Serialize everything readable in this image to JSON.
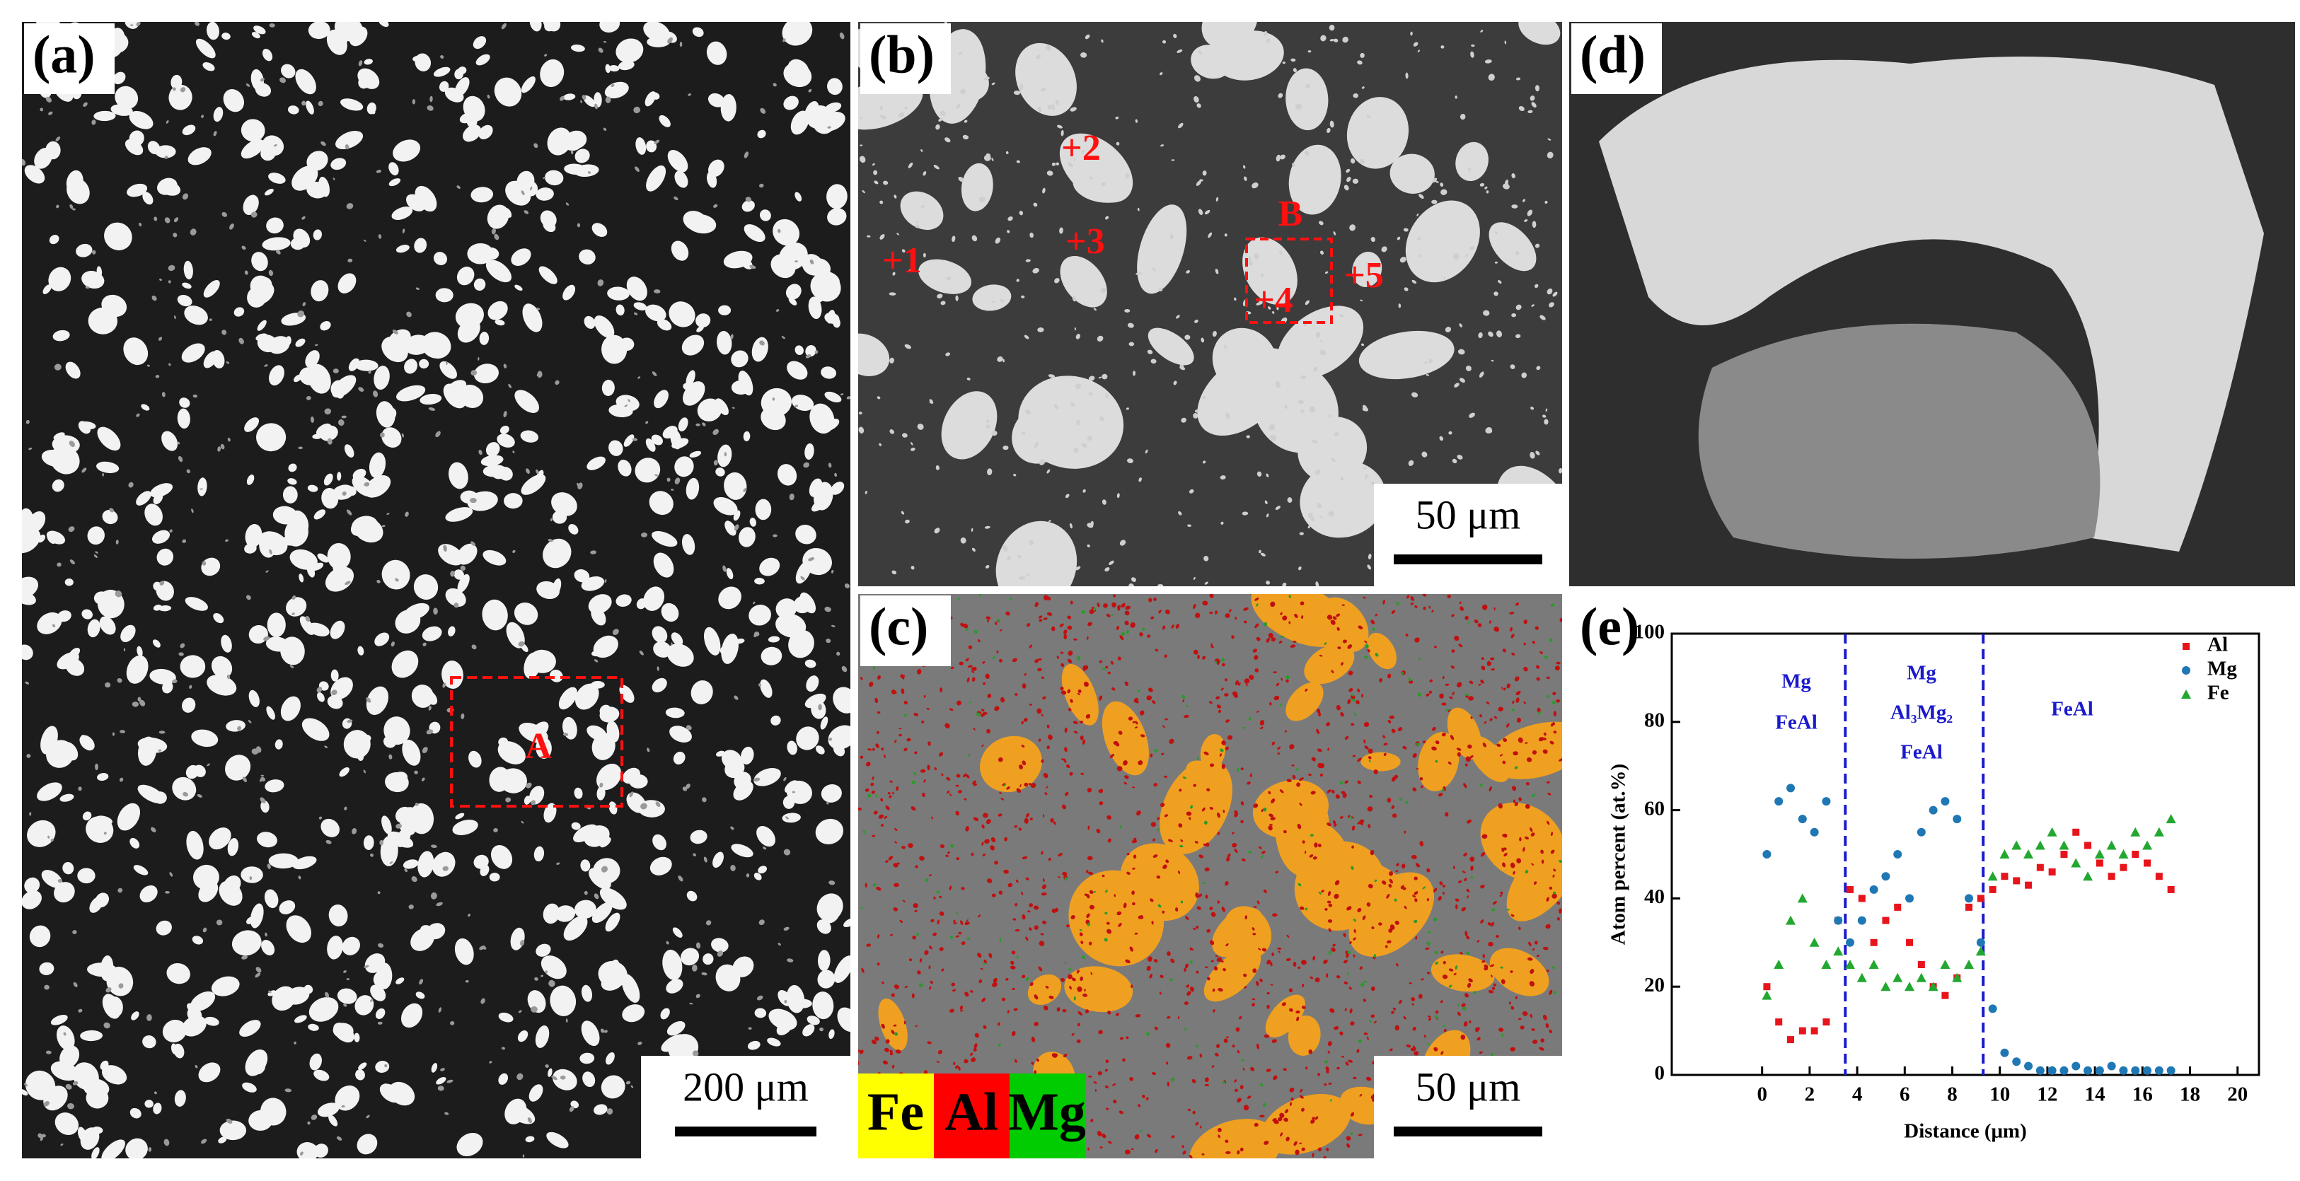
{
  "panels": [
    {
      "label": "(a)",
      "markers": [
        "A"
      ],
      "scale_bar": "200 μm"
    },
    {
      "label": "(b)",
      "markers": [
        "B",
        "+1",
        "+2",
        "+3",
        "+4",
        "+5"
      ],
      "scale_bar": "50 μm"
    },
    {
      "label": "(c)",
      "scale_bar": "50 μm",
      "legend": [
        "Fe",
        "Al",
        "Mg"
      ],
      "legend_colors": [
        "#ffff00",
        "#ff0000",
        "#00cc00"
      ]
    },
    {
      "label": "(d)"
    }
  ],
  "chart_data": {
    "type": "scatter",
    "panel_label": "(e)",
    "xlabel": "Distance (μm)",
    "ylabel": "Atom percent (at.%)",
    "xlim": [
      -3.8,
      20.9
    ],
    "ylim": [
      0,
      100
    ],
    "xticks": [
      0,
      2,
      4,
      6,
      8,
      10,
      12,
      14,
      16,
      18,
      20
    ],
    "yticks": [
      0,
      20,
      40,
      60,
      80,
      100
    ],
    "dividers": [
      3.5,
      9.3
    ],
    "region_labels": [
      [
        "Mg",
        "FeAl"
      ],
      [
        "Mg",
        "Al₃Mg₂",
        "FeAl"
      ],
      [
        "FeAl"
      ]
    ],
    "legend_position": "upper right",
    "x": [
      0.2,
      0.7,
      1.2,
      1.7,
      2.2,
      2.7,
      3.2,
      3.7,
      4.2,
      4.7,
      5.2,
      5.7,
      6.2,
      6.7,
      7.2,
      7.7,
      8.2,
      8.7,
      9.2,
      9.7,
      10.2,
      10.7,
      11.2,
      11.7,
      12.2,
      12.7,
      13.2,
      13.7,
      14.2,
      14.7,
      15.2,
      15.7,
      16.2,
      16.7,
      17.2
    ],
    "series": [
      {
        "name": "Al",
        "color": "#e8141c",
        "marker": "square",
        "values": [
          20,
          12,
          8,
          10,
          10,
          12,
          35,
          42,
          40,
          30,
          35,
          38,
          30,
          25,
          20,
          18,
          22,
          38,
          40,
          42,
          45,
          44,
          43,
          47,
          46,
          50,
          55,
          52,
          48,
          45,
          47,
          50,
          48,
          45,
          42
        ]
      },
      {
        "name": "Mg",
        "color": "#1f77b4",
        "marker": "circle",
        "values": [
          50,
          62,
          65,
          58,
          55,
          62,
          35,
          30,
          35,
          42,
          45,
          50,
          40,
          55,
          60,
          62,
          58,
          40,
          30,
          15,
          5,
          3,
          2,
          1,
          1,
          1,
          2,
          1,
          1,
          2,
          1,
          1,
          1,
          1,
          1
        ]
      },
      {
        "name": "Fe",
        "color": "#22a830",
        "marker": "triangle",
        "values": [
          18,
          25,
          35,
          40,
          30,
          25,
          28,
          25,
          22,
          25,
          20,
          22,
          20,
          22,
          20,
          25,
          22,
          25,
          28,
          45,
          50,
          52,
          50,
          52,
          55,
          52,
          48,
          45,
          50,
          52,
          50,
          55,
          52,
          55,
          58
        ]
      }
    ]
  }
}
